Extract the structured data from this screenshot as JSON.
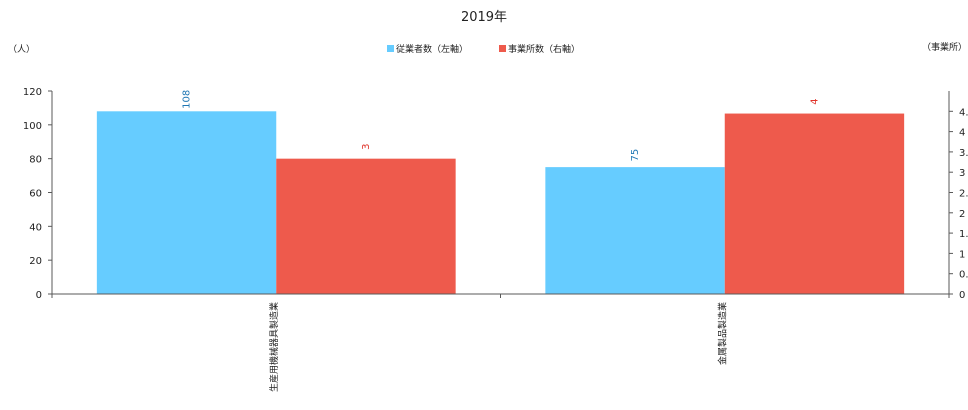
{
  "chart_data": {
    "type": "bar",
    "title": "2019年",
    "categories": [
      "生産用機械器具製造業",
      "金属製品製造業"
    ],
    "series": [
      {
        "name": "従業者数（左軸）",
        "axis": "left",
        "color": "#66CCFF",
        "label_color": "#1F77B4",
        "values": [
          108,
          75
        ]
      },
      {
        "name": "事業所数（右軸）",
        "axis": "right",
        "color": "#EE5A4C",
        "label_color": "#E0332A",
        "values": [
          3,
          4
        ]
      }
    ],
    "y_left": {
      "unit_label": "（人）",
      "min": 0,
      "max": 120,
      "ticks": [
        0,
        20,
        40,
        60,
        80,
        100,
        120
      ]
    },
    "y_right": {
      "unit_label": "（事業所）",
      "min": 0,
      "max": 4.5,
      "ticks": [
        "0",
        "0.",
        "1",
        "1.",
        "2",
        "2.",
        "3",
        "3.",
        "4",
        "4."
      ]
    },
    "legend_position": "top-center",
    "grid": false
  }
}
